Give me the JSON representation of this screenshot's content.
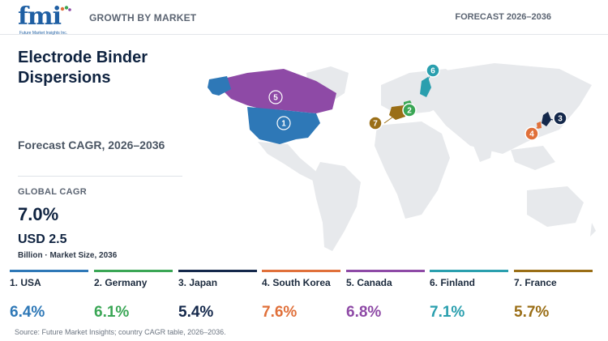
{
  "header": {
    "logo_text": "fmi",
    "logo_subtext": "Future Market Insights Inc.",
    "growth_label": "GROWTH BY MARKET",
    "forecast_label": "FORECAST 2026–2036"
  },
  "left_panel": {
    "title": "Electrode Binder Dispersions",
    "cagr_label": "Forecast CAGR, 2026–2036",
    "global_label": "GLOBAL CAGR",
    "global_value": "7.0%",
    "market_size": "USD 2.5",
    "market_size_note": "Billion · Market Size, 2036"
  },
  "source": "Source: Future Market Insights; country CAGR table, 2026–2036.",
  "chart_data": {
    "type": "table",
    "title": "Electrode Binder Dispersions",
    "subtitle": "Forecast CAGR, 2026–2036",
    "unit": "%",
    "countries": [
      {
        "rank": "1",
        "name": "1. USA",
        "cagr": 6.4,
        "label": "6.4%",
        "color": "#2e78b7"
      },
      {
        "rank": "2",
        "name": "2. Germany",
        "cagr": 6.1,
        "label": "6.1%",
        "color": "#3aa655"
      },
      {
        "rank": "3",
        "name": "3. Japan",
        "cagr": 5.4,
        "label": "5.4%",
        "color": "#14284b"
      },
      {
        "rank": "4",
        "name": "4. South Korea",
        "cagr": 7.6,
        "label": "7.6%",
        "color": "#e0703a"
      },
      {
        "rank": "5",
        "name": "5. Canada",
        "cagr": 6.8,
        "label": "6.8%",
        "color": "#8e4aa6"
      },
      {
        "rank": "6",
        "name": "6. Finland",
        "cagr": 7.1,
        "label": "7.1%",
        "color": "#2a9fae"
      },
      {
        "rank": "7",
        "name": "7. France",
        "cagr": 5.7,
        "label": "5.7%",
        "color": "#9a6e16"
      }
    ]
  }
}
